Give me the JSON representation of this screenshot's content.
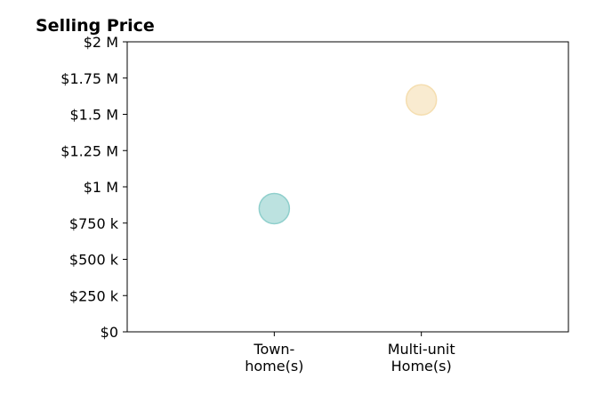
{
  "chart_data": {
    "type": "scatter",
    "title": "Selling Price",
    "xlabel": "",
    "ylabel": "",
    "categories": [
      [
        "Town-",
        "home(s)"
      ],
      [
        "Multi-unit",
        "Home(s)"
      ]
    ],
    "x_range": [
      -1,
      2
    ],
    "ylim": [
      0,
      2000000
    ],
    "y_ticks": [
      0,
      250000,
      500000,
      750000,
      1000000,
      1250000,
      1500000,
      1750000,
      2000000
    ],
    "y_tick_labels": [
      "$0",
      "$250 k",
      "$500 k",
      "$750 k",
      "$1 M",
      "$1.25 M",
      "$1.5 M",
      "$1.75 M",
      "$2 M"
    ],
    "points": [
      {
        "category_index": 0,
        "value": 850000,
        "color": "#8fcfcc"
      },
      {
        "category_index": 1,
        "value": 1600000,
        "color": "#f5deb0"
      }
    ],
    "grid": false,
    "legend": "none"
  }
}
